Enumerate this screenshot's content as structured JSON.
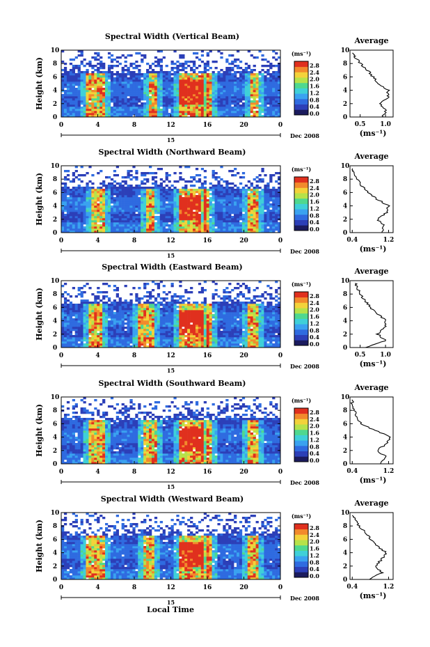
{
  "figure": {
    "date_label": "Dec 2008",
    "day_label": "15",
    "xlabel": "Local Time",
    "ylabel": "Height (km)",
    "colorbar_unit": "(ms⁻¹)",
    "profile_title": "Average",
    "profile_xlabel": "(ms⁻¹)",
    "colorbar_ticks": [
      "0.0",
      "0.4",
      "0.8",
      "1.2",
      "1.6",
      "2.0",
      "2.4",
      "2.8"
    ],
    "x_ticks": [
      "0",
      "4",
      "8",
      "12",
      "16",
      "20",
      "0"
    ],
    "y_ticks": [
      "0",
      "2",
      "4",
      "6",
      "8",
      "10"
    ]
  },
  "chart_data": [
    {
      "type": "heatmap",
      "title": "Spectral Width (Vertical Beam)",
      "xlabel": "Local Time",
      "ylabel": "Height (km)",
      "xlim": [
        0,
        24
      ],
      "ylim": [
        0,
        10
      ],
      "clim": [
        0.0,
        2.8
      ],
      "high_width_bands_hours": [
        [
          2.8,
          4.8
        ],
        [
          9.5,
          10.5
        ],
        [
          13,
          15.5
        ],
        [
          15.8,
          16.4
        ],
        [
          20.8,
          21.6
        ]
      ],
      "profile": {
        "title": "Average",
        "xlabel": "(ms⁻¹)",
        "xticks": [
          "0.5",
          "1.0"
        ],
        "xlim": [
          0.3,
          1.15
        ],
        "ylim": [
          0,
          10
        ],
        "height_km": [
          0,
          1,
          2,
          3,
          4,
          5,
          6,
          7,
          8,
          9,
          9.6
        ],
        "width": [
          0.95,
          1.0,
          0.9,
          1.05,
          1.05,
          0.85,
          0.75,
          0.65,
          0.5,
          0.4,
          0.35
        ]
      }
    },
    {
      "type": "heatmap",
      "title": "Spectral Width (Northward Beam)",
      "xlabel": "Local Time",
      "ylabel": "Height (km)",
      "xlim": [
        0,
        24
      ],
      "ylim": [
        0,
        10
      ],
      "clim": [
        0.0,
        2.8
      ],
      "high_width_bands_hours": [
        [
          3.2,
          4.8
        ],
        [
          9.3,
          10.3
        ],
        [
          12.8,
          15.3
        ],
        [
          15.6,
          16.3
        ],
        [
          20.5,
          21.5
        ]
      ],
      "profile": {
        "title": "Average",
        "xlabel": "(ms⁻¹)",
        "xticks": [
          "0.4",
          "1.2"
        ],
        "xlim": [
          0.35,
          1.3
        ],
        "ylim": [
          0,
          10
        ],
        "height_km": [
          0,
          1,
          2,
          3,
          4,
          5,
          6,
          7,
          8,
          9,
          9.6
        ],
        "width": [
          1.05,
          1.1,
          0.95,
          1.15,
          1.2,
          0.95,
          0.75,
          0.6,
          0.5,
          0.45,
          0.4
        ]
      }
    },
    {
      "type": "heatmap",
      "title": "Spectral Width (Eastward Beam)",
      "xlabel": "Local Time",
      "ylabel": "Height (km)",
      "xlim": [
        0,
        24
      ],
      "ylim": [
        0,
        10
      ],
      "clim": [
        0.0,
        2.8
      ],
      "high_width_bands_hours": [
        [
          3.0,
          4.6
        ],
        [
          8.5,
          10.3
        ],
        [
          12.8,
          15.5
        ],
        [
          15.8,
          16.6
        ],
        [
          20.5,
          21.6
        ]
      ],
      "profile": {
        "title": "Average",
        "xlabel": "(ms⁻¹)",
        "xticks": [
          "0.5",
          "1.0"
        ],
        "xlim": [
          0.3,
          1.15
        ],
        "ylim": [
          0,
          10
        ],
        "height_km": [
          0,
          1,
          2,
          3,
          4,
          5,
          6,
          7,
          8,
          9,
          9.6
        ],
        "width": [
          0.6,
          1.0,
          0.85,
          1.0,
          1.0,
          0.85,
          0.7,
          0.6,
          0.5,
          0.45,
          0.4
        ]
      }
    },
    {
      "type": "heatmap",
      "title": "Spectral Width (Southward Beam)",
      "xlabel": "Local Time",
      "ylabel": "Height (km)",
      "xlim": [
        0,
        24
      ],
      "ylim": [
        0,
        10
      ],
      "clim": [
        0.0,
        2.8
      ],
      "high_width_bands_hours": [
        [
          3.0,
          4.8
        ],
        [
          9.0,
          10.5
        ],
        [
          12.8,
          15.5
        ],
        [
          15.8,
          16.4
        ],
        [
          20.5,
          21.6
        ]
      ],
      "profile": {
        "title": "Average",
        "xlabel": "(ms⁻¹)",
        "xticks": [
          "0.4",
          "1.2"
        ],
        "xlim": [
          0.35,
          1.3
        ],
        "ylim": [
          0,
          10
        ],
        "height_km": [
          0,
          1,
          2,
          3,
          4,
          5,
          6,
          7,
          8,
          9,
          9.6
        ],
        "width": [
          1.0,
          1.15,
          0.95,
          1.15,
          1.25,
          0.9,
          0.6,
          0.5,
          0.45,
          0.4,
          0.4
        ]
      }
    },
    {
      "type": "heatmap",
      "title": "Spectral Width (Westward Beam)",
      "xlabel": "Local Time",
      "ylabel": "Height (km)",
      "xlim": [
        0,
        24
      ],
      "ylim": [
        0,
        10
      ],
      "clim": [
        0.0,
        2.8
      ],
      "high_width_bands_hours": [
        [
          2.8,
          4.8
        ],
        [
          9.0,
          10.3
        ],
        [
          12.8,
          15.5
        ],
        [
          15.8,
          16.6
        ],
        [
          20.5,
          21.6
        ]
      ],
      "profile": {
        "title": "Average",
        "xlabel": "(ms⁻¹)",
        "xticks": [
          "0.4",
          "1.2"
        ],
        "xlim": [
          0.35,
          1.3
        ],
        "ylim": [
          0,
          10
        ],
        "height_km": [
          0,
          1,
          2,
          3,
          4,
          5,
          6,
          7,
          8,
          9,
          9.6
        ],
        "width": [
          0.75,
          1.05,
          0.9,
          1.05,
          1.15,
          0.95,
          0.8,
          0.7,
          0.55,
          0.45,
          0.4
        ]
      }
    }
  ],
  "colors": {
    "colormap": [
      "#1b1b5e",
      "#2c3fb8",
      "#2f6be0",
      "#3aa2f0",
      "#3fd0d8",
      "#4fd88f",
      "#b6e24a",
      "#f3d23a",
      "#f28a2c",
      "#e0301e"
    ]
  }
}
